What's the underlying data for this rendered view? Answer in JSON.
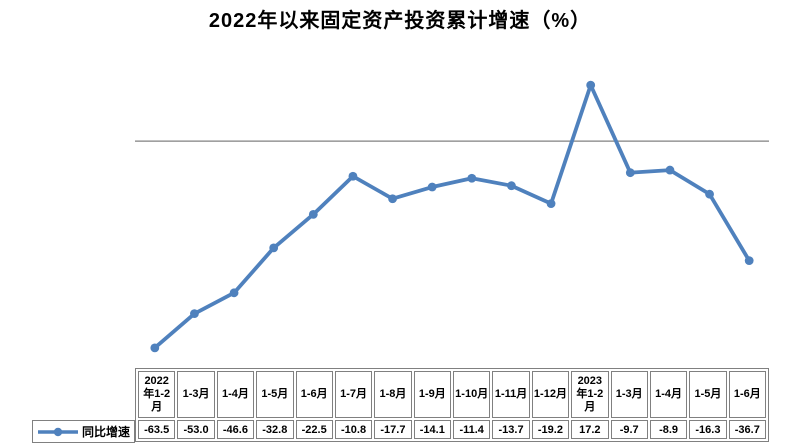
{
  "colors": {
    "accent": "#4f81bd",
    "axis_line": "#808080",
    "table_border": "#808080",
    "title_text": "#000000"
  },
  "chart_data": {
    "type": "line",
    "title": "2022年以来固定资产投资累计增速（%）",
    "xlabel": "",
    "ylabel": "",
    "ylim": [
      -70,
      20
    ],
    "grid": false,
    "zero_axis_line": true,
    "legend_position": "data-table-left",
    "has_data_table": true,
    "categories": [
      "2022年1-2月",
      "1-3月",
      "1-4月",
      "1-5月",
      "1-6月",
      "1-7月",
      "1-8月",
      "1-9月",
      "1-10月",
      "1-11月",
      "1-12月",
      "2023年1-2月",
      "1-3月",
      "1-4月",
      "1-5月",
      "1-6月"
    ],
    "series": [
      {
        "name": "同比增速",
        "values": [
          -63.5,
          -53.0,
          -46.6,
          -32.8,
          -22.5,
          -10.8,
          -17.7,
          -14.1,
          -11.4,
          -13.7,
          -19.2,
          17.2,
          -9.7,
          -8.9,
          -16.3,
          -36.7
        ]
      }
    ],
    "value_labels": [
      "-63.5",
      "-53.0",
      "-46.6",
      "-32.8",
      "-22.5",
      "-10.8",
      "-17.7",
      "-14.1",
      "-11.4",
      "-13.7",
      "-19.2",
      "17.2",
      "-9.7",
      "-8.9",
      "-16.3",
      "-36.7"
    ]
  }
}
